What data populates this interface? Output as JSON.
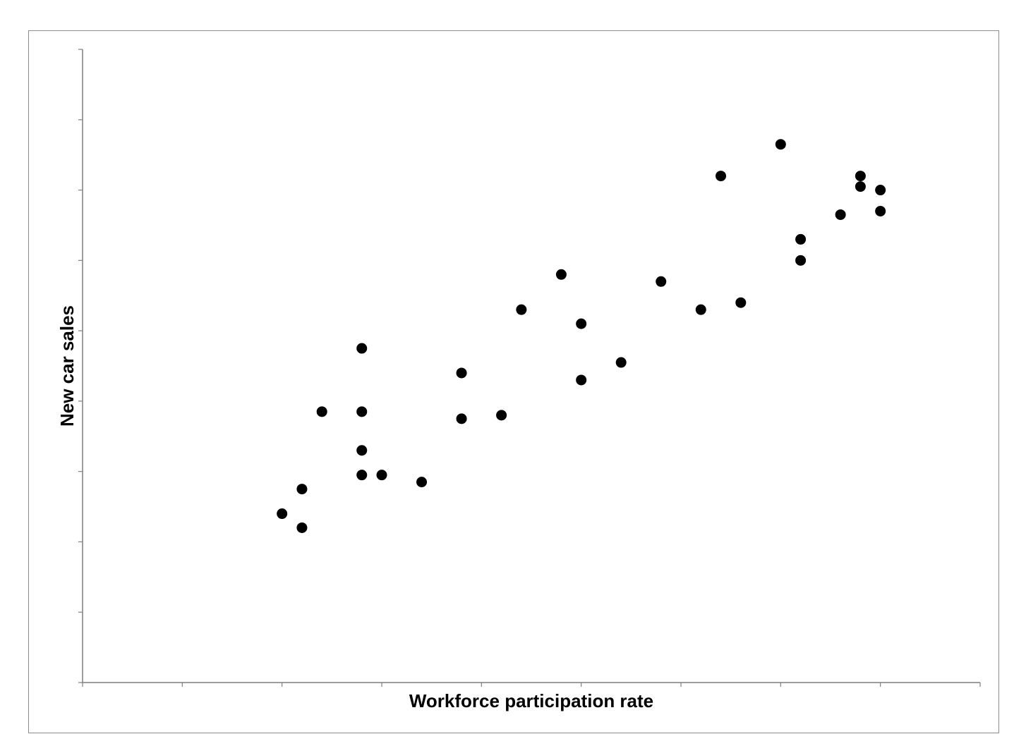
{
  "chart_data": {
    "type": "scatter",
    "title": "",
    "xlabel": "Workforce participation rate",
    "ylabel": "New car sales",
    "xlim": [
      0,
      9
    ],
    "ylim": [
      0,
      9
    ],
    "x_tick_count": 10,
    "y_tick_count": 10,
    "tick_labels_shown": false,
    "grid": false,
    "legend": "none",
    "marker_color": "#000000",
    "axis_color": "#7f7f7f",
    "points": [
      {
        "x": 2.0,
        "y": 2.4
      },
      {
        "x": 2.2,
        "y": 2.2
      },
      {
        "x": 2.2,
        "y": 2.75
      },
      {
        "x": 2.4,
        "y": 3.85
      },
      {
        "x": 2.8,
        "y": 4.75
      },
      {
        "x": 2.8,
        "y": 3.85
      },
      {
        "x": 2.8,
        "y": 3.3
      },
      {
        "x": 2.8,
        "y": 2.95
      },
      {
        "x": 3.0,
        "y": 2.95
      },
      {
        "x": 3.4,
        "y": 2.85
      },
      {
        "x": 3.8,
        "y": 4.4
      },
      {
        "x": 3.8,
        "y": 3.75
      },
      {
        "x": 4.2,
        "y": 3.8
      },
      {
        "x": 4.4,
        "y": 5.3
      },
      {
        "x": 4.8,
        "y": 5.8
      },
      {
        "x": 5.0,
        "y": 5.1
      },
      {
        "x": 5.0,
        "y": 4.3
      },
      {
        "x": 5.4,
        "y": 4.55
      },
      {
        "x": 5.8,
        "y": 5.7
      },
      {
        "x": 6.2,
        "y": 5.3
      },
      {
        "x": 6.4,
        "y": 7.2
      },
      {
        "x": 6.6,
        "y": 5.4
      },
      {
        "x": 7.0,
        "y": 7.65
      },
      {
        "x": 7.2,
        "y": 6.3
      },
      {
        "x": 7.2,
        "y": 6.0
      },
      {
        "x": 7.6,
        "y": 6.65
      },
      {
        "x": 7.8,
        "y": 7.2
      },
      {
        "x": 7.8,
        "y": 7.05
      },
      {
        "x": 8.0,
        "y": 7.0
      },
      {
        "x": 8.0,
        "y": 6.7
      }
    ]
  }
}
